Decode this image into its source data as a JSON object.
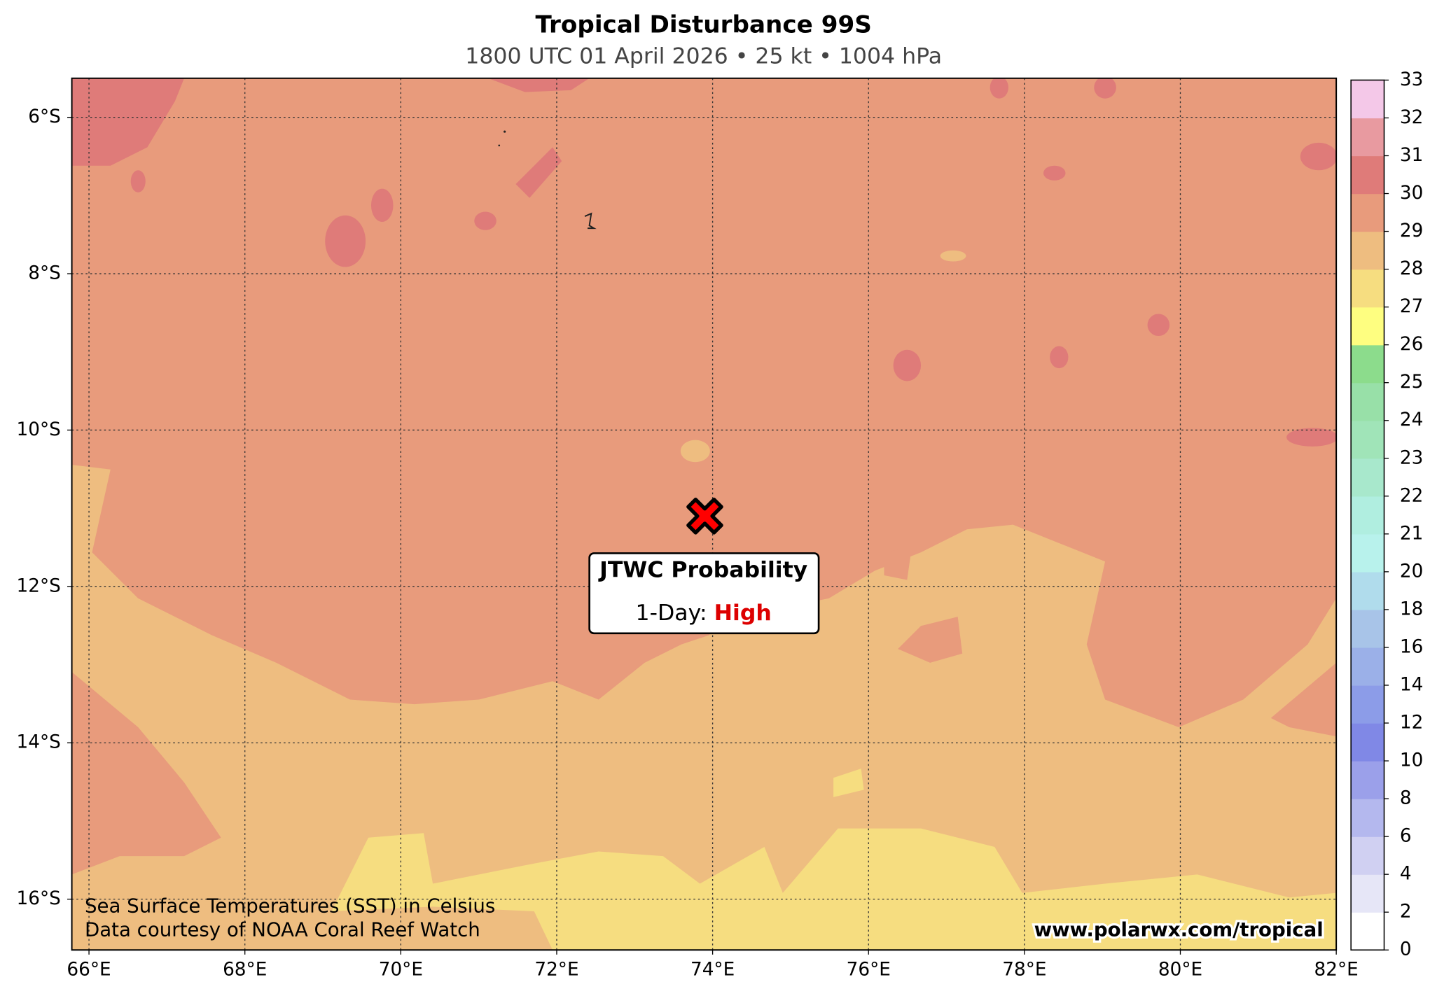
{
  "title": "Tropical Disturbance 99S",
  "subtitle": "1800 UTC 01 April 2026 • 25 kt • 1004 hPa",
  "map": {
    "xlim": [
      65.78,
      82
    ],
    "ylim": [
      -16.65,
      -5.5
    ],
    "grid": true,
    "xticks": [
      {
        "value": 66,
        "label": "66°E"
      },
      {
        "value": 68,
        "label": "68°E"
      },
      {
        "value": 70,
        "label": "70°E"
      },
      {
        "value": 72,
        "label": "72°E"
      },
      {
        "value": 74,
        "label": "74°E"
      },
      {
        "value": 76,
        "label": "76°E"
      },
      {
        "value": 78,
        "label": "78°E"
      },
      {
        "value": 80,
        "label": "80°E"
      },
      {
        "value": 82,
        "label": "82°E"
      }
    ],
    "yticks": [
      {
        "value": -6,
        "label": "6°S"
      },
      {
        "value": -8,
        "label": "8°S"
      },
      {
        "value": -10,
        "label": "10°S"
      },
      {
        "value": -12,
        "label": "12°S"
      },
      {
        "value": -14,
        "label": "14°S"
      },
      {
        "value": -16,
        "label": "16°S"
      }
    ]
  },
  "storm": {
    "lon": 73.9,
    "lat": -11.1,
    "color": "#ff0000"
  },
  "probability_box": {
    "title": "JTWC Probability",
    "period": "1-Day:",
    "level": "High",
    "level_color": "#dd0000"
  },
  "colorbar": {
    "bounds": [
      0,
      2,
      4,
      6,
      8,
      10,
      12,
      14,
      16,
      18,
      20,
      21,
      22,
      23,
      24,
      25,
      26,
      27,
      28,
      29,
      30,
      31,
      32,
      33
    ],
    "colors": [
      "#ffffff",
      "#e6e6f7",
      "#d0d0f2",
      "#b4b8ee",
      "#9ba0ea",
      "#8088e6",
      "#8c9ce8",
      "#9bb0e8",
      "#a8c4e8",
      "#b0dcec",
      "#b8f2ec",
      "#b0eee0",
      "#a8e8cc",
      "#a0e4b8",
      "#98e0a8",
      "#8cdc8c",
      "#fefe80",
      "#f6dd80",
      "#eebd80",
      "#e89b7c",
      "#df7b79",
      "#e89aa0",
      "#f4c8e8"
    ]
  },
  "credits": [
    "Sea Surface Temperatures (SST) in Celsius",
    "Data courtesy of NOAA Coral Reef Watch"
  ],
  "website": "www.polarwx.com/tropical"
}
